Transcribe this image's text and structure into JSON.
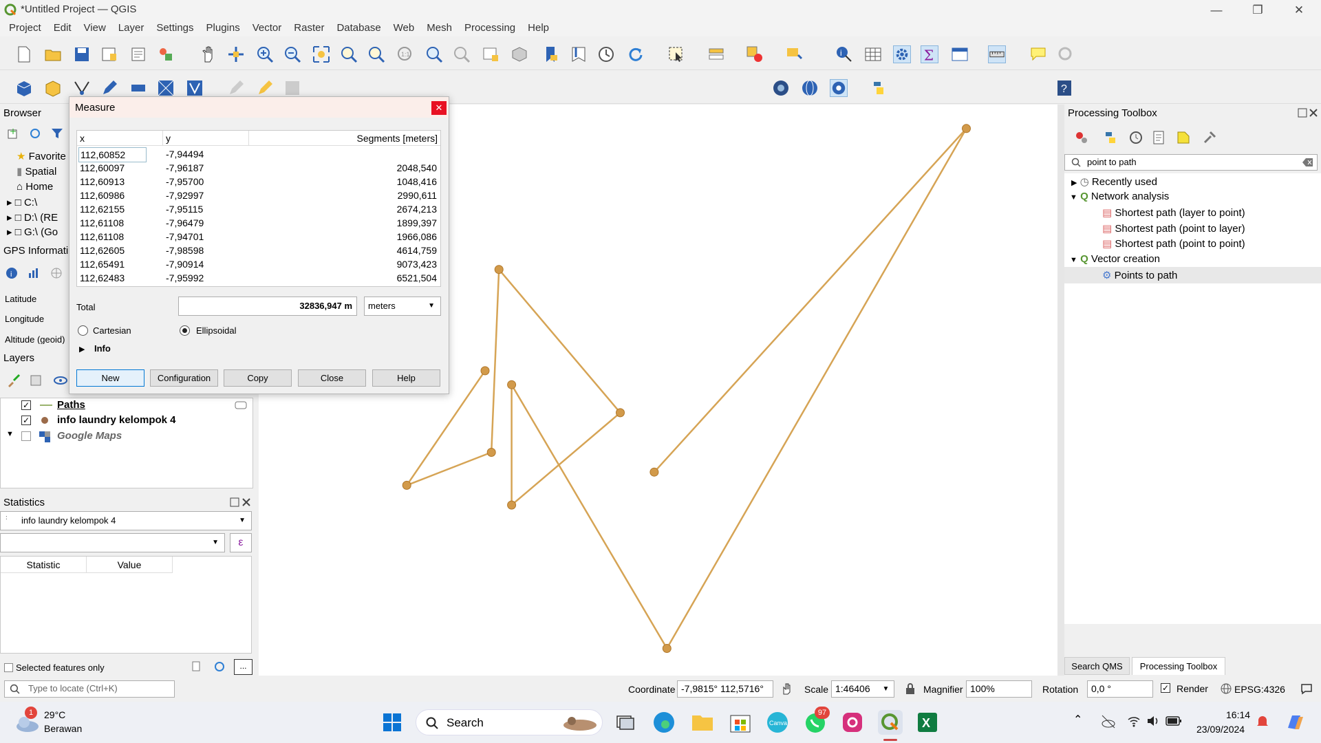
{
  "window": {
    "title": "*Untitled Project — QGIS"
  },
  "menu": [
    "Project",
    "Edit",
    "View",
    "Layer",
    "Settings",
    "Plugins",
    "Vector",
    "Raster",
    "Database",
    "Web",
    "Mesh",
    "Processing",
    "Help"
  ],
  "browser": {
    "title": "Browser",
    "items": [
      "Favorite",
      "Spatial",
      "Home",
      "C:\\",
      "D:\\ (RE",
      "G:\\ (Go"
    ]
  },
  "gps": {
    "title": "GPS Informati",
    "latitude": "Latitude",
    "longitude": "Longitude",
    "altitude": "Altitude (geoid)"
  },
  "measure": {
    "title": "Measure",
    "col_x": "x",
    "col_y": "y",
    "col_seg": "Segments [meters]",
    "rows": [
      {
        "x": "112,60852",
        "y": "-7,94494",
        "seg": ""
      },
      {
        "x": "112,60097",
        "y": "-7,96187",
        "seg": "2048,540"
      },
      {
        "x": "112,60913",
        "y": "-7,95700",
        "seg": "1048,416"
      },
      {
        "x": "112,60986",
        "y": "-7,92997",
        "seg": "2990,611"
      },
      {
        "x": "112,62155",
        "y": "-7,95115",
        "seg": "2674,213"
      },
      {
        "x": "112,61108",
        "y": "-7,96479",
        "seg": "1899,397"
      },
      {
        "x": "112,61108",
        "y": "-7,94701",
        "seg": "1966,086"
      },
      {
        "x": "112,62605",
        "y": "-7,98598",
        "seg": "4614,759"
      },
      {
        "x": "112,65491",
        "y": "-7,90914",
        "seg": "9073,423"
      },
      {
        "x": "112,62483",
        "y": "-7,95992",
        "seg": "6521,504"
      }
    ],
    "total_label": "Total",
    "total_value": "32836,947 m",
    "unit": "meters",
    "cartesian": "Cartesian",
    "ellipsoidal": "Ellipsoidal",
    "info": "Info",
    "buttons": {
      "new": "New",
      "configuration": "Configuration",
      "copy": "Copy",
      "close": "Close",
      "help": "Help"
    }
  },
  "layers": {
    "title": "Layers",
    "items": [
      {
        "name": "Paths",
        "checked": true
      },
      {
        "name": "info laundry kelompok 4",
        "checked": true
      },
      {
        "name": "Google Maps",
        "checked": false
      }
    ]
  },
  "statistics": {
    "title": "Statistics",
    "layer": "info laundry kelompok 4",
    "col_stat": "Statistic",
    "col_value": "Value",
    "selected_only": "Selected features only"
  },
  "processing": {
    "title": "Processing Toolbox",
    "search": "point to path",
    "tree": {
      "recent": "Recently used",
      "network": "Network analysis",
      "sp1": "Shortest path (layer to point)",
      "sp2": "Shortest path (point to layer)",
      "sp3": "Shortest path (point to point)",
      "vector": "Vector creation",
      "p2p": "Points to path"
    },
    "tabs": {
      "qms": "Search QMS",
      "toolbox": "Processing Toolbox"
    }
  },
  "statusbar": {
    "locate_placeholder": "Type to locate (Ctrl+K)",
    "coordinate_label": "Coordinate",
    "coordinate": "-7,9815° 112,5716°",
    "scale_label": "Scale",
    "scale": "1:46406",
    "magnifier_label": "Magnifier",
    "magnifier": "100%",
    "rotation_label": "Rotation",
    "rotation": "0,0 °",
    "render": "Render",
    "crs": "EPSG:4326"
  },
  "taskbar": {
    "temp": "29°C",
    "weather": "Berawan",
    "weather_badge": "1",
    "search": "Search",
    "whatsapp_badge": "97",
    "time": "16:14",
    "date": "23/09/2024"
  },
  "colors": {
    "path": "#d9a24e",
    "accent": "#0078d4"
  }
}
